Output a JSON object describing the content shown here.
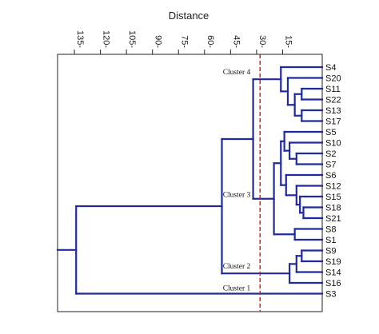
{
  "chart_data": {
    "type": "dendrogram",
    "xlabel": "Distance",
    "xlim": [
      0,
      145
    ],
    "x_direction": "reversed",
    "ticks": [
      135,
      120,
      105,
      90,
      75,
      60,
      45,
      30,
      15
    ],
    "tick_labels": [
      "135-",
      "120-",
      "105-",
      "90-",
      "75-",
      "60-",
      "45-",
      "30-",
      "15-"
    ],
    "leaves": [
      "S4",
      "S20",
      "S11",
      "S22",
      "S13",
      "S17",
      "S5",
      "S10",
      "S2",
      "S7",
      "S6",
      "S12",
      "S15",
      "S18",
      "S21",
      "S8",
      "S1",
      "S9",
      "S19",
      "S14",
      "S16",
      "S3"
    ],
    "merges": [
      {
        "id": "a",
        "children": [
          "S11",
          "S22"
        ],
        "height": 4
      },
      {
        "id": "b",
        "children": [
          "S13",
          "S17"
        ],
        "height": 4
      },
      {
        "id": "c",
        "children": [
          "a",
          "b"
        ],
        "height": 8
      },
      {
        "id": "d",
        "children": [
          "S20",
          "c"
        ],
        "height": 12
      },
      {
        "id": "e",
        "children": [
          "S4",
          "d"
        ],
        "height": 16
      },
      {
        "id": "f",
        "children": [
          "S2",
          "S7"
        ],
        "height": 7
      },
      {
        "id": "g",
        "children": [
          "S10",
          "f"
        ],
        "height": 11
      },
      {
        "id": "h",
        "children": [
          "S5",
          "g"
        ],
        "height": 14
      },
      {
        "id": "i",
        "children": [
          "S18",
          "S21"
        ],
        "height": 3
      },
      {
        "id": "j",
        "children": [
          "S15",
          "i"
        ],
        "height": 5
      },
      {
        "id": "k",
        "children": [
          "S12",
          "j"
        ],
        "height": 7
      },
      {
        "id": "l",
        "children": [
          "S6",
          "k"
        ],
        "height": 13
      },
      {
        "id": "m",
        "children": [
          "h",
          "l"
        ],
        "height": 16
      },
      {
        "id": "n",
        "children": [
          "S8",
          "S1"
        ],
        "height": 8
      },
      {
        "id": "o",
        "children": [
          "m",
          "n"
        ],
        "height": 20
      },
      {
        "id": "p",
        "children": [
          "e",
          "o"
        ],
        "height": 32
      },
      {
        "id": "q",
        "children": [
          "S9",
          "S19"
        ],
        "height": 4
      },
      {
        "id": "r",
        "children": [
          "q",
          "S14"
        ],
        "height": 7
      },
      {
        "id": "s",
        "children": [
          "r",
          "S16"
        ],
        "height": 11
      },
      {
        "id": "t",
        "children": [
          "p",
          "s"
        ],
        "height": 50
      },
      {
        "id": "u",
        "children": [
          "t",
          "S3"
        ],
        "height": 134
      }
    ],
    "cut_line": 28,
    "cut_line_color": "#cc2222",
    "line_color": "#1f2a9e",
    "annotations": [
      "Cluster 4",
      "Cluster 3",
      "Cluster 2",
      "Cluster 1"
    ],
    "grid": false
  }
}
